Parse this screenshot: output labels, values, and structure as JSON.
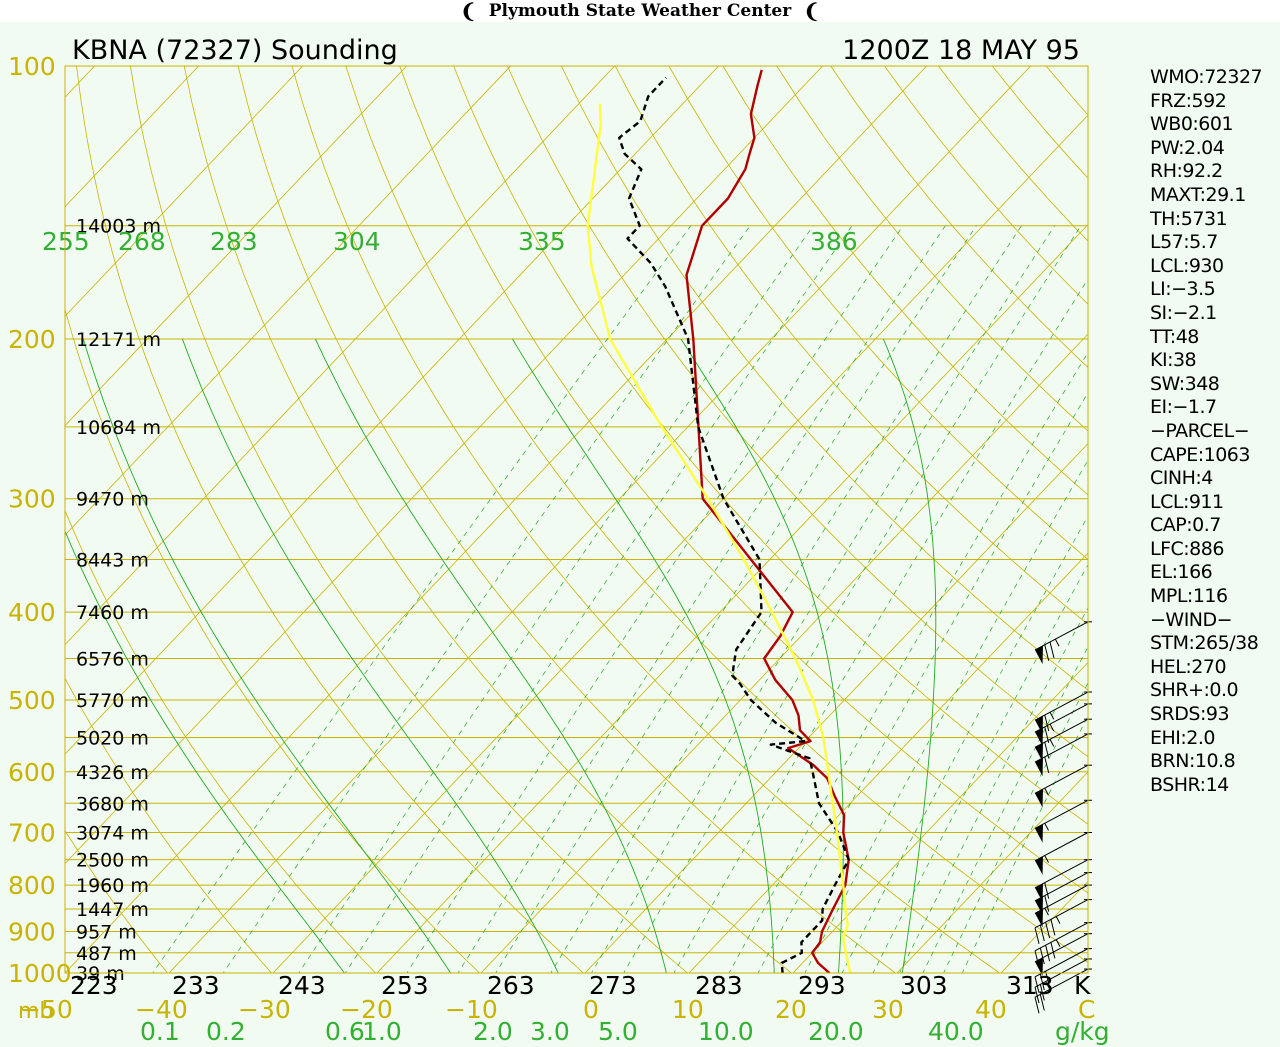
{
  "header": {
    "title": "Plymouth State Weather Center",
    "logo_left": "❨",
    "logo_right": "❨"
  },
  "chart_data": {
    "type": "line",
    "subtype": "skew-T log-P thermodynamic diagram",
    "title": "KBNA (72327) Sounding",
    "valid_time": "1200Z 18 MAY 95",
    "pressure_labels": [
      "100",
      "200",
      "300",
      "400",
      "500",
      "600",
      "700",
      "800",
      "900",
      "1000"
    ],
    "pressure_unit": "mb",
    "height_labels": [
      {
        "p": 150,
        "text": "14003 m"
      },
      {
        "p": 200,
        "text": "12171 m"
      },
      {
        "p": 250,
        "text": "10684 m"
      },
      {
        "p": 300,
        "text": "9470 m"
      },
      {
        "p": 350,
        "text": "8443 m"
      },
      {
        "p": 400,
        "text": "7460 m"
      },
      {
        "p": 450,
        "text": "6576 m"
      },
      {
        "p": 500,
        "text": "5770 m"
      },
      {
        "p": 550,
        "text": "5020 m"
      },
      {
        "p": 600,
        "text": "4326 m"
      },
      {
        "p": 650,
        "text": "3680 m"
      },
      {
        "p": 700,
        "text": "3074 m"
      },
      {
        "p": 750,
        "text": "2500 m"
      },
      {
        "p": 800,
        "text": "1960 m"
      },
      {
        "p": 850,
        "text": "1447 m"
      },
      {
        "p": 900,
        "text": "957 m"
      },
      {
        "p": 950,
        "text": "487 m"
      },
      {
        "p": 1000,
        "text": "39 m"
      }
    ],
    "temperature_labels": [
      "−50",
      "−40",
      "−30",
      "−20",
      "−10",
      "0",
      "10",
      "20",
      "30",
      "40",
      "C"
    ],
    "temperature_values": [
      -50,
      -40,
      -30,
      -20,
      -10,
      0,
      10,
      20,
      30,
      40
    ],
    "potential_temp_labels": [
      "223",
      "233",
      "243",
      "253",
      "263",
      "273",
      "283",
      "293",
      "303",
      "313",
      "K"
    ],
    "equiv_potential_temp_labels": [
      "255",
      "268",
      "283",
      "304",
      "335",
      "386"
    ],
    "mixing_ratio_labels": [
      "0.1",
      "0.2",
      "0.6",
      "1.0",
      "2.0",
      "3.0",
      "5.0",
      "10.0",
      "20.0",
      "40.0",
      "g/kg"
    ],
    "series": [
      {
        "name": "temperature",
        "color": "#b00000",
        "style": "solid",
        "points": [
          [
            1000,
            23.5
          ],
          [
            975,
            21.5
          ],
          [
            950,
            20.0
          ],
          [
            925,
            19.8
          ],
          [
            900,
            19.0
          ],
          [
            850,
            18.0
          ],
          [
            800,
            17.0
          ],
          [
            750,
            15.0
          ],
          [
            700,
            12.0
          ],
          [
            670,
            10.5
          ],
          [
            640,
            8.0
          ],
          [
            610,
            5.5
          ],
          [
            590,
            3.0
          ],
          [
            565,
            -1.0
          ],
          [
            555,
            0.5
          ],
          [
            540,
            -1.5
          ],
          [
            520,
            -3.0
          ],
          [
            500,
            -5.0
          ],
          [
            475,
            -8.5
          ],
          [
            450,
            -11.5
          ],
          [
            425,
            -12.0
          ],
          [
            400,
            -13.0
          ],
          [
            300,
            -32.0
          ],
          [
            200,
            -47.5
          ],
          [
            170,
            -54.0
          ],
          [
            150,
            -57.0
          ],
          [
            140,
            -57.0
          ],
          [
            130,
            -58.0
          ],
          [
            125,
            -59.0
          ],
          [
            120,
            -60.0
          ],
          [
            113,
            -62.5
          ],
          [
            105,
            -64.5
          ],
          [
            101,
            -65.5
          ]
        ]
      },
      {
        "name": "dewpoint",
        "color": "#000000",
        "style": "dashed",
        "points": [
          [
            1000,
            19.0
          ],
          [
            975,
            18.0
          ],
          [
            950,
            19.0
          ],
          [
            925,
            18.0
          ],
          [
            900,
            18.0
          ],
          [
            875,
            18.0
          ],
          [
            850,
            17.0
          ],
          [
            800,
            16.0
          ],
          [
            750,
            15.0
          ],
          [
            700,
            11.5
          ],
          [
            650,
            7.0
          ],
          [
            600,
            3.5
          ],
          [
            580,
            2.0
          ],
          [
            560,
            -3.0
          ],
          [
            555,
            0.0
          ],
          [
            530,
            -4.5
          ],
          [
            500,
            -9.0
          ],
          [
            480,
            -11.5
          ],
          [
            470,
            -13.0
          ],
          [
            455,
            -14.0
          ],
          [
            440,
            -15.0
          ],
          [
            400,
            -16.0
          ],
          [
            350,
            -21.0
          ],
          [
            300,
            -30.0
          ],
          [
            250,
            -39.0
          ],
          [
            200,
            -48.0
          ],
          [
            175,
            -55.0
          ],
          [
            165,
            -58.5
          ],
          [
            155,
            -63.0
          ],
          [
            150,
            -63.0
          ],
          [
            140,
            -66.5
          ],
          [
            130,
            -68.0
          ],
          [
            125,
            -71.0
          ],
          [
            120,
            -73.0
          ],
          [
            115,
            -72.5
          ],
          [
            108,
            -74.0
          ],
          [
            103,
            -74.0
          ]
        ]
      },
      {
        "name": "parcel",
        "color": "#ffff40",
        "style": "solid",
        "points": [
          [
            1000,
            25.5
          ],
          [
            930,
            22.3
          ],
          [
            911,
            21.5
          ],
          [
            886,
            20.9
          ],
          [
            850,
            19.2
          ],
          [
            800,
            16.8
          ],
          [
            700,
            11.4
          ],
          [
            600,
            5.0
          ],
          [
            550,
            1.4
          ],
          [
            500,
            -3.0
          ],
          [
            450,
            -8.5
          ],
          [
            400,
            -15.0
          ],
          [
            350,
            -22.5
          ],
          [
            300,
            -31.5
          ],
          [
            250,
            -42.5
          ],
          [
            200,
            -55.5
          ],
          [
            166,
            -64.0
          ],
          [
            150,
            -68.0
          ],
          [
            116,
            -76.0
          ],
          [
            110,
            -78.0
          ]
        ]
      }
    ],
    "wind_barbs": [
      {
        "p": 410,
        "speed_kt": 75
      },
      {
        "p": 490,
        "speed_kt": 65
      },
      {
        "p": 505,
        "speed_kt": 65
      },
      {
        "p": 525,
        "speed_kt": 65
      },
      {
        "p": 545,
        "speed_kt": 60
      },
      {
        "p": 590,
        "speed_kt": 55
      },
      {
        "p": 645,
        "speed_kt": 55
      },
      {
        "p": 700,
        "speed_kt": 55
      },
      {
        "p": 750,
        "speed_kt": 60
      },
      {
        "p": 775,
        "speed_kt": 60
      },
      {
        "p": 800,
        "speed_kt": 55
      },
      {
        "p": 830,
        "speed_kt": 45
      },
      {
        "p": 880,
        "speed_kt": 45
      },
      {
        "p": 905,
        "speed_kt": 50
      },
      {
        "p": 940,
        "speed_kt": 30
      },
      {
        "p": 965,
        "speed_kt": 25
      },
      {
        "p": 990,
        "speed_kt": 20
      }
    ],
    "colors": {
      "isotherm": "#c8b400",
      "isobar": "#c8b400",
      "dry_adiabat": "#c8b400",
      "moist_adiabat": "#22aa22",
      "mixing_ratio": "#22aa22",
      "label_gold": "#c8b400",
      "label_green": "#33b033",
      "background": "#f1fbf1"
    }
  },
  "indices": [
    "WMO:72327",
    "FRZ:592",
    "WB0:601",
    "PW:2.04",
    "RH:92.2",
    "MAXT:29.1",
    "TH:5731",
    "L57:5.7",
    "LCL:930",
    "LI:−3.5",
    "SI:−2.1",
    "TT:48",
    "KI:38",
    "SW:348",
    "EI:−1.7",
    "−PARCEL−",
    "CAPE:1063",
    "CINH:4",
    "LCL:911",
    "CAP:0.7",
    "LFC:886",
    "EL:166",
    "MPL:116",
    "−WIND−",
    "STM:265/38",
    "HEL:270",
    "SHR+:0.0",
    "SRDS:93",
    "EHI:2.0",
    "BRN:10.8",
    "BSHR:14"
  ]
}
